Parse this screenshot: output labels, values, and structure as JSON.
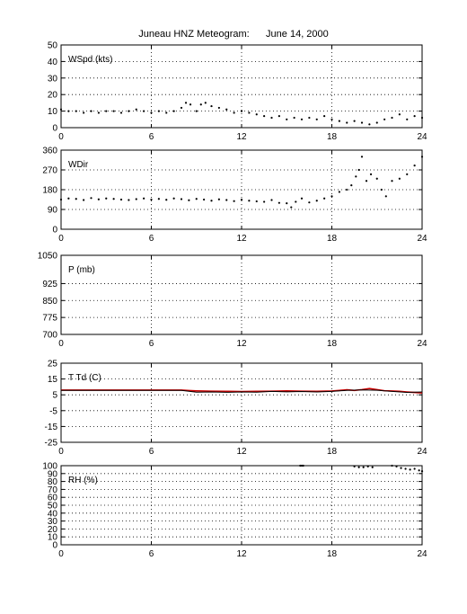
{
  "title": {
    "station": "Juneau HNZ Meteogram:",
    "date": "June 14, 2000"
  },
  "chart_data": [
    {
      "type": "scatter",
      "label": "WSpd (kts)",
      "xlim": [
        0,
        24
      ],
      "xticks": [
        0,
        6,
        12,
        18,
        24
      ],
      "ylim": [
        0,
        50
      ],
      "yticks": [
        0,
        10,
        20,
        30,
        40,
        50
      ],
      "grid": true,
      "series": [
        {
          "color": "#000000",
          "x": [
            0,
            0.5,
            1,
            1.5,
            2,
            2.5,
            3,
            3.5,
            4,
            4.5,
            5,
            5.5,
            6,
            6.5,
            7,
            7.5,
            8,
            8.3,
            8.6,
            9,
            9.3,
            9.6,
            10,
            10.5,
            11,
            11.5,
            12,
            12.5,
            13,
            13.5,
            14,
            14.5,
            15,
            15.5,
            16,
            16.5,
            17,
            17.5,
            18,
            18.5,
            19,
            19.5,
            20,
            20.5,
            21,
            21.5,
            22,
            22.5,
            23,
            23.5,
            24
          ],
          "y": [
            11,
            10,
            10,
            9,
            10,
            9,
            10,
            10,
            9,
            10,
            11,
            10,
            9,
            10,
            9,
            10,
            12,
            15,
            14,
            10,
            14,
            15,
            13,
            12,
            11,
            9,
            10,
            9,
            8,
            7,
            6,
            7,
            5,
            6,
            5,
            6,
            5,
            7,
            5,
            4,
            3,
            4,
            3,
            2,
            3,
            5,
            6,
            8,
            5,
            7,
            6
          ]
        }
      ]
    },
    {
      "type": "scatter",
      "label": "WDir",
      "xlim": [
        0,
        24
      ],
      "xticks": [
        0,
        6,
        12,
        18,
        24
      ],
      "ylim": [
        0,
        360
      ],
      "yticks": [
        0,
        90,
        180,
        270,
        360
      ],
      "grid": true,
      "series": [
        {
          "color": "#000000",
          "x": [
            0,
            0.5,
            1,
            1.5,
            2,
            2.5,
            3,
            3.5,
            4,
            4.5,
            5,
            5.5,
            6,
            6.5,
            7,
            7.5,
            8,
            8.5,
            9,
            9.5,
            10,
            10.5,
            11,
            11.5,
            12,
            12.5,
            13,
            13.5,
            14,
            14.5,
            15,
            15.3,
            15.6,
            16,
            16.5,
            17,
            17.5,
            18,
            18.5,
            19,
            19.3,
            19.6,
            19.8,
            20,
            20.3,
            20.6,
            21,
            21.3,
            21.6,
            22,
            22.5,
            23,
            23.5,
            24
          ],
          "y": [
            135,
            140,
            138,
            133,
            142,
            136,
            140,
            138,
            135,
            133,
            137,
            140,
            135,
            138,
            134,
            140,
            137,
            132,
            138,
            135,
            130,
            136,
            133,
            128,
            135,
            130,
            127,
            125,
            133,
            120,
            118,
            100,
            125,
            140,
            122,
            130,
            140,
            150,
            170,
            180,
            200,
            240,
            270,
            330,
            220,
            250,
            230,
            180,
            150,
            220,
            230,
            250,
            290,
            330
          ]
        }
      ]
    },
    {
      "type": "scatter",
      "label": "P (mb)",
      "xlim": [
        0,
        24
      ],
      "xticks": [
        0,
        6,
        12,
        18,
        24
      ],
      "ylim": [
        700,
        1050
      ],
      "yticks": [
        700,
        775,
        850,
        925,
        1050
      ],
      "grid": true,
      "series": []
    },
    {
      "type": "line",
      "label": "T Td (C)",
      "xlim": [
        0,
        24
      ],
      "xticks": [
        0,
        6,
        12,
        18,
        24
      ],
      "ylim": [
        -25,
        25
      ],
      "yticks": [
        -25,
        -15,
        -5,
        5,
        15,
        25
      ],
      "grid": true,
      "series": [
        {
          "color": "#cc0000",
          "x": [
            0,
            2,
            4,
            6,
            8,
            8.5,
            9,
            10,
            11,
            12,
            13,
            14,
            15,
            16,
            17,
            18,
            18.5,
            19,
            19.5,
            20,
            20.5,
            21,
            21.5,
            22,
            22.5,
            23,
            23.5,
            24
          ],
          "y": [
            8,
            8,
            8,
            8,
            8,
            7.7,
            7.5,
            7.3,
            7.2,
            7.1,
            7.2,
            7.3,
            7.5,
            7.3,
            7.2,
            7.4,
            7.8,
            8.2,
            7.8,
            8.3,
            9,
            8.3,
            7.6,
            7.4,
            7.2,
            6.8,
            6.5,
            6.2
          ]
        },
        {
          "color": "#000000",
          "x": [
            0,
            2,
            4,
            6,
            8,
            9,
            10,
            11,
            12,
            13,
            14,
            15,
            16,
            17,
            18,
            19,
            20,
            21,
            22,
            23,
            24
          ],
          "y": [
            7.8,
            7.8,
            7.8,
            7.8,
            7.8,
            6.7,
            6.8,
            6.6,
            6.8,
            6.7,
            7.2,
            6.9,
            7.1,
            6.8,
            7.2,
            7.8,
            8.1,
            7.9,
            7.2,
            6.5,
            6.8
          ]
        }
      ]
    },
    {
      "type": "scatter",
      "label": "RH (%)",
      "xlim": [
        0,
        24
      ],
      "xticks": [
        0,
        6,
        12,
        18,
        24
      ],
      "ylim": [
        0,
        100
      ],
      "yticks": [
        0,
        10,
        20,
        30,
        40,
        50,
        60,
        70,
        80,
        90,
        100
      ],
      "grid": true,
      "series": [
        {
          "color": "#000000",
          "x": [
            15.9,
            16,
            16.1,
            19.5,
            19.8,
            20.1,
            20.4,
            20.7,
            22,
            22.3,
            22.6,
            22.9,
            23.2,
            23.5,
            23.8,
            24
          ],
          "y": [
            100,
            100,
            100,
            99,
            98,
            98,
            99,
            98,
            100,
            99,
            97,
            96,
            95,
            96,
            94,
            93
          ]
        }
      ]
    }
  ]
}
